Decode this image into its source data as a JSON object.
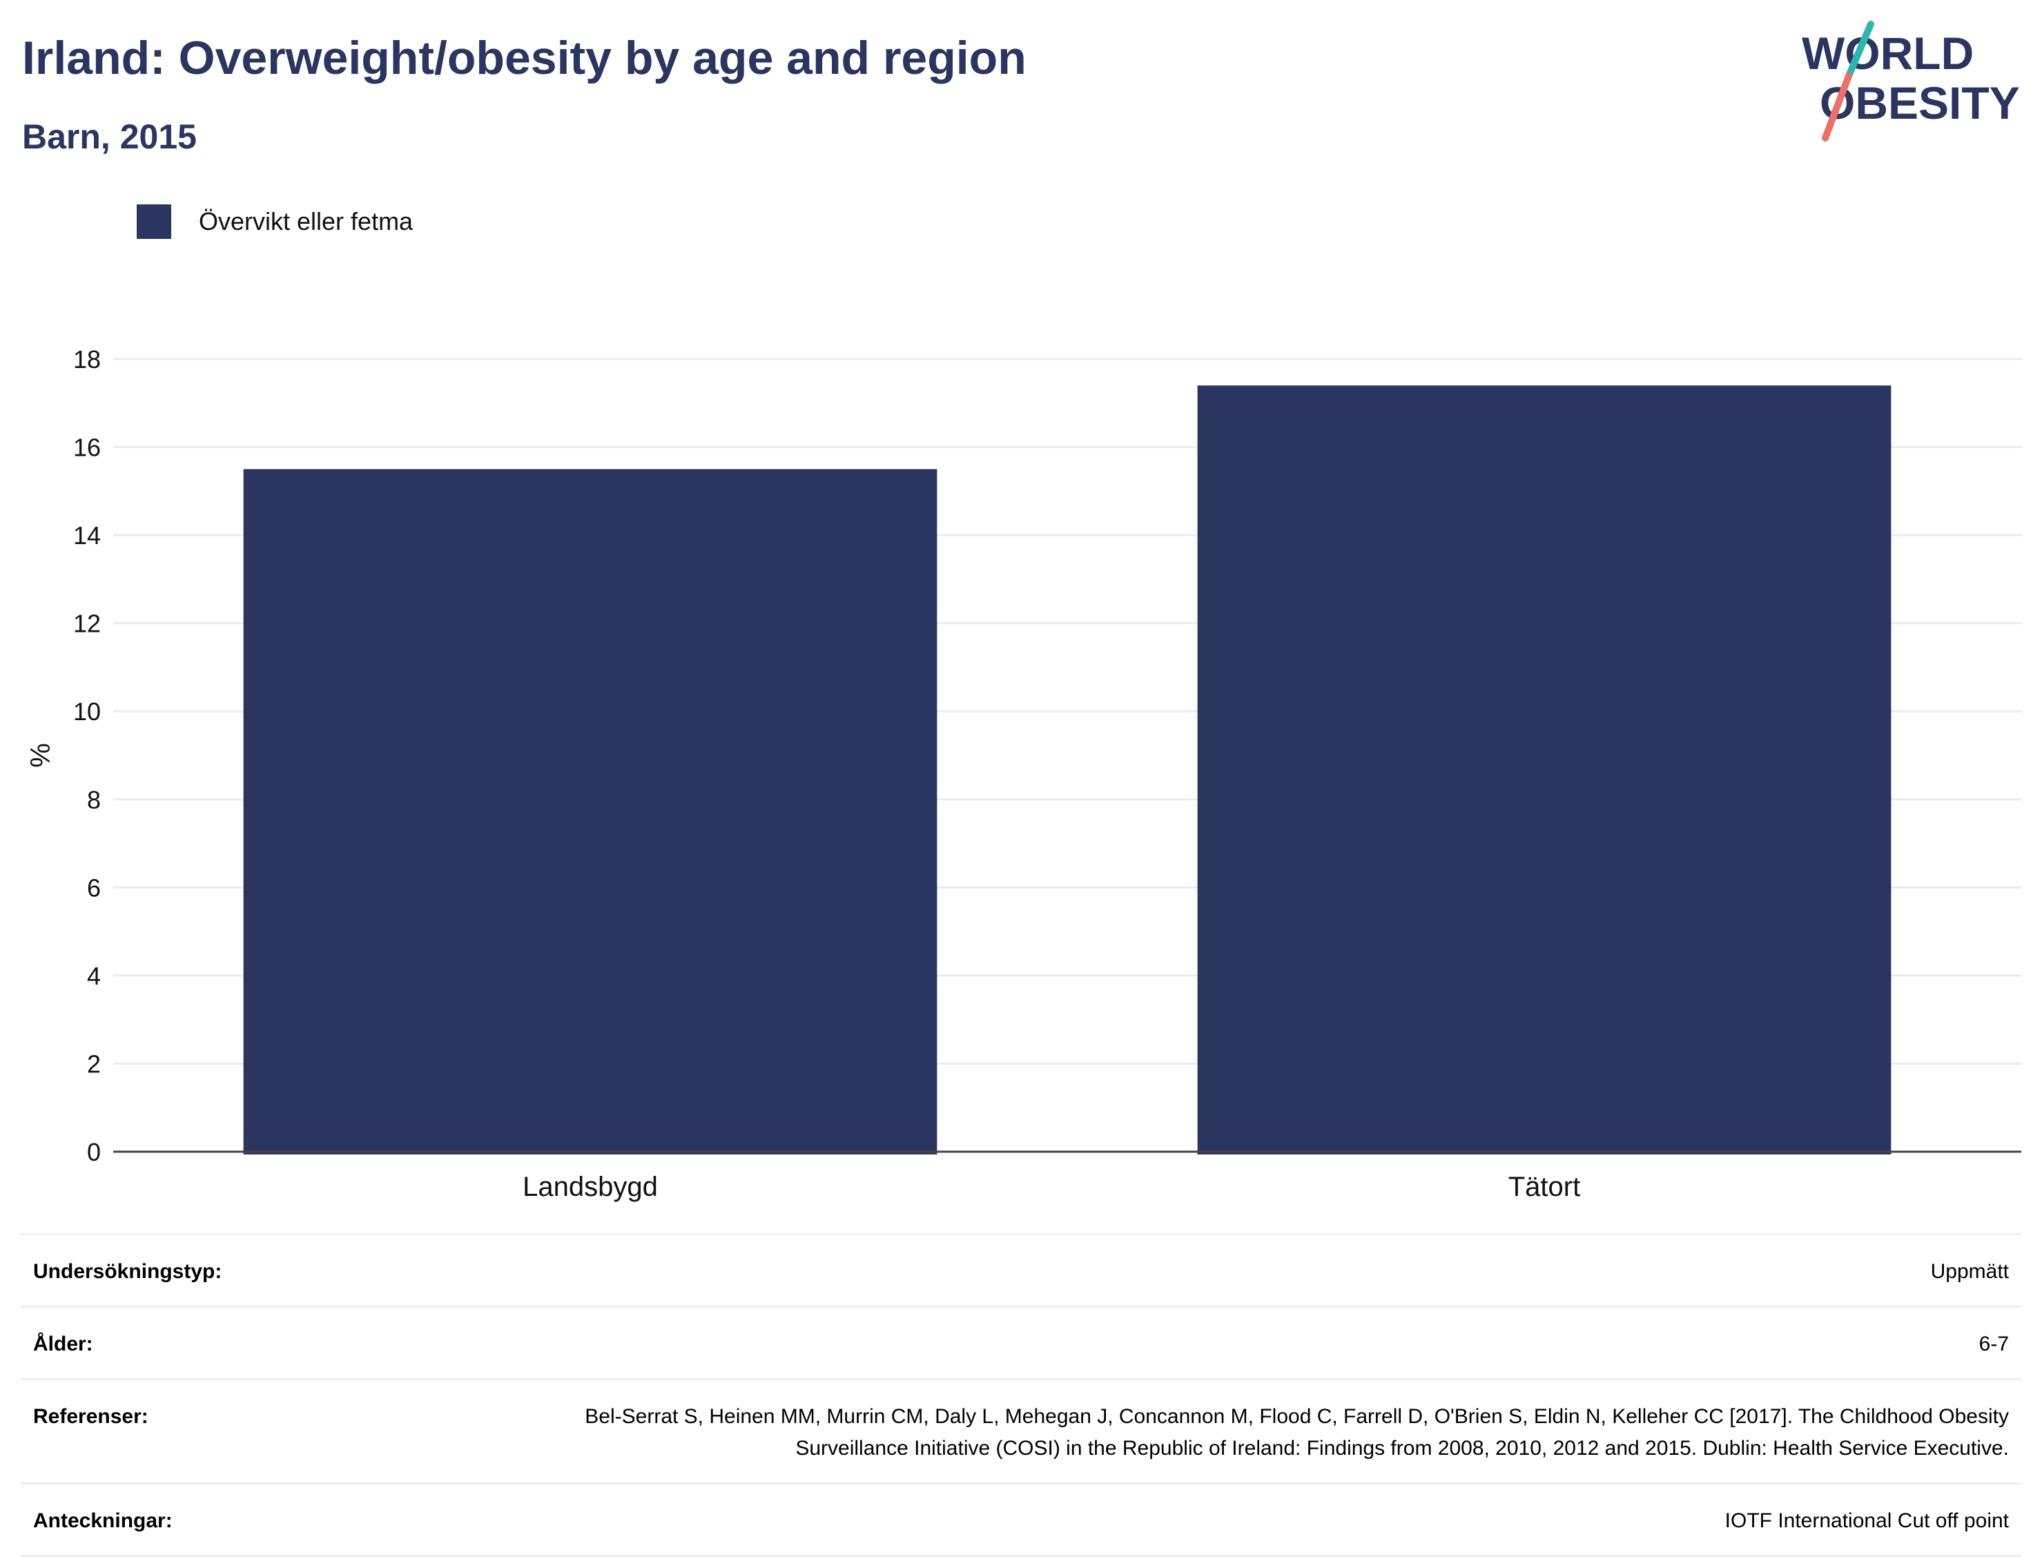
{
  "header": {
    "title": "Irland: Overweight/obesity by age and region",
    "subtitle": "Barn, 2015"
  },
  "logo": {
    "line1": "WORLD",
    "line2": "OBESITY",
    "colors": {
      "text": "#2b3660",
      "slash_top": "#2fb5b0",
      "slash_bottom": "#e8716a"
    }
  },
  "colors": {
    "bar": "#2b3660",
    "grid": "#e9ebf0",
    "axis": "#444444",
    "text": "#2b3660"
  },
  "chart_data": {
    "type": "bar",
    "categories": [
      "Landsbygd",
      "Tätort"
    ],
    "series": [
      {
        "name": "Övervikt eller fetma",
        "values": [
          15.5,
          17.4
        ]
      }
    ],
    "ylabel": "%",
    "ylim": [
      0,
      18
    ],
    "yticks": [
      0,
      2,
      4,
      6,
      8,
      10,
      12,
      14,
      16,
      18
    ],
    "grid": true,
    "legend_position": "top-left"
  },
  "info": [
    {
      "label": "Undersökningstyp:",
      "value": "Uppmätt"
    },
    {
      "label": "Ålder:",
      "value": "6-7"
    },
    {
      "label": "Referenser:",
      "value": "Bel-Serrat S, Heinen MM, Murrin CM, Daly L, Mehegan J, Concannon M, Flood C, Farrell D, O'Brien S, Eldin N, Kelleher CC [2017]. The Childhood Obesity Surveillance Initiative (COSI) in the Republic of Ireland: Findings from 2008, 2010, 2012 and 2015. Dublin: Health Service Executive."
    },
    {
      "label": "Anteckningar:",
      "value": "IOTF International Cut off point"
    }
  ]
}
